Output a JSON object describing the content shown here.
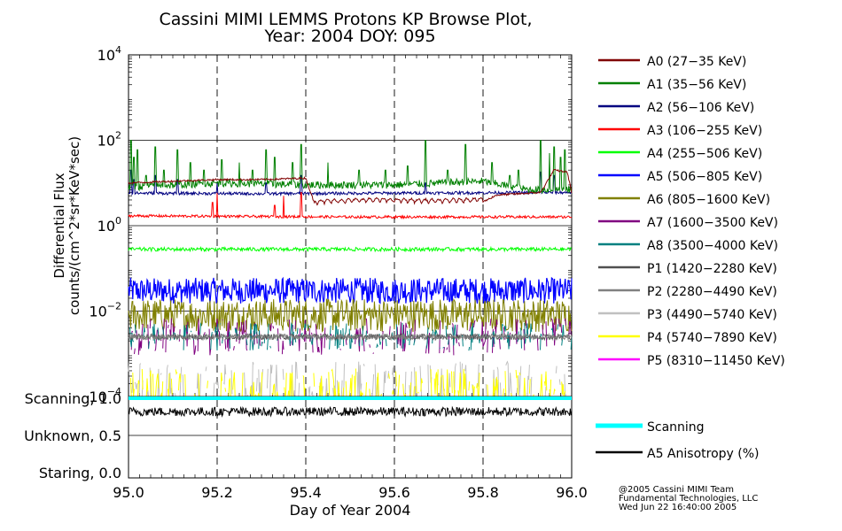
{
  "title_line1": "Cassini MIMI LEMMS Protons KP Browse Plot,",
  "title_line2": "Year: 2004 DOY: 095",
  "footer": [
    "@2005 Cassini MIMI Team",
    "Fundamental Technologies, LLC",
    "Wed Jun 22 16:40:00 2005"
  ],
  "chart_data": [
    {
      "type": "line",
      "panel": "flux",
      "xlabel": "",
      "ylabel_line1": "Differential Flux",
      "ylabel_line2": "counts/(cm^2*sr*KeV*sec)",
      "ylog": true,
      "ylim": [
        0.0001,
        10000
      ],
      "xlim": [
        95.0,
        96.0
      ],
      "ytick_labels": [
        {
          "base": "10",
          "exp": "4",
          "value": 10000
        },
        {
          "base": "10",
          "exp": "2",
          "value": 100
        },
        {
          "base": "10",
          "exp": "0",
          "value": 1
        },
        {
          "base": "10",
          "exp": "−2",
          "value": 0.01
        },
        {
          "base": "10",
          "exp": "−4",
          "value": 0.0001
        }
      ],
      "grid": true,
      "vertical_dashed_lines_at": [
        95.2,
        95.4,
        95.6,
        95.8
      ],
      "series": [
        {
          "name": "A0 (27−35 KeV)",
          "color": "#800000",
          "profile": [
            [
              95.0,
              10
            ],
            [
              95.1,
              11
            ],
            [
              95.2,
              12
            ],
            [
              95.3,
              12
            ],
            [
              95.4,
              13
            ],
            [
              95.42,
              3.2
            ],
            [
              95.55,
              3.5
            ],
            [
              95.7,
              3.3
            ],
            [
              95.8,
              3.6
            ],
            [
              95.83,
              5.2
            ],
            [
              95.93,
              6
            ],
            [
              95.96,
              20
            ],
            [
              95.99,
              18
            ],
            [
              96.0,
              6
            ]
          ],
          "noise": 0.05
        },
        {
          "name": "A1 (35−56 KeV)",
          "color": "#008000",
          "profile": [
            [
              95.0,
              8
            ],
            [
              95.2,
              10
            ],
            [
              95.4,
              9
            ],
            [
              95.6,
              9
            ],
            [
              95.8,
              11
            ],
            [
              95.9,
              7
            ],
            [
              96.0,
              7
            ]
          ],
          "noise": 0.2,
          "spikes": [
            [
              95.005,
              100
            ],
            [
              95.012,
              40
            ],
            [
              95.02,
              60
            ],
            [
              95.04,
              15
            ],
            [
              95.06,
              70
            ],
            [
              95.08,
              20
            ],
            [
              95.11,
              60
            ],
            [
              95.14,
              30
            ],
            [
              95.17,
              20
            ],
            [
              95.21,
              35
            ],
            [
              95.25,
              30
            ],
            [
              95.28,
              20
            ],
            [
              95.31,
              60
            ],
            [
              95.33,
              40
            ],
            [
              95.37,
              30
            ],
            [
              95.39,
              80
            ],
            [
              95.45,
              30
            ],
            [
              95.52,
              20
            ],
            [
              95.58,
              20
            ],
            [
              95.63,
              25
            ],
            [
              95.67,
              100
            ],
            [
              95.72,
              20
            ],
            [
              95.76,
              80
            ],
            [
              95.82,
              30
            ],
            [
              95.86,
              15
            ],
            [
              95.88,
              20
            ],
            [
              95.93,
              100
            ],
            [
              95.95,
              50
            ],
            [
              95.96,
              70
            ],
            [
              95.975,
              40
            ],
            [
              95.985,
              60
            ]
          ]
        },
        {
          "name": "A2 (56−106 KeV)",
          "color": "#000080",
          "profile": [
            [
              95.0,
              5.8
            ],
            [
              95.3,
              5.6
            ],
            [
              95.6,
              5.8
            ],
            [
              96.0,
              6
            ]
          ],
          "noise": 0.08,
          "spikes": [
            [
              95.005,
              20
            ],
            [
              95.012,
              12
            ],
            [
              95.06,
              15
            ],
            [
              95.11,
              12
            ],
            [
              95.2,
              10
            ],
            [
              95.31,
              10
            ],
            [
              95.39,
              15
            ],
            [
              95.67,
              10
            ],
            [
              95.93,
              18
            ],
            [
              95.96,
              15
            ]
          ]
        },
        {
          "name": "A3 (106−255 KeV)",
          "color": "#ff0000",
          "profile": [
            [
              95.0,
              1.7
            ],
            [
              95.5,
              1.6
            ],
            [
              96.0,
              1.6
            ]
          ],
          "noise": 0.07,
          "spikes": [
            [
              95.19,
              3.5
            ],
            [
              95.2,
              6
            ],
            [
              95.33,
              3
            ],
            [
              95.35,
              5
            ],
            [
              95.39,
              6
            ]
          ]
        },
        {
          "name": "A4 (255−506 KeV)",
          "color": "#00ff00",
          "profile": [
            [
              95.0,
              0.28
            ],
            [
              95.5,
              0.28
            ],
            [
              96.0,
              0.28
            ]
          ],
          "noise": 0.1
        },
        {
          "name": "A5 (506−805 KeV)",
          "color": "#0000ff",
          "profile": [
            [
              95.0,
              0.03
            ],
            [
              96.0,
              0.03
            ]
          ],
          "noise": 0.7
        },
        {
          "name": "A6 (805−1600 KeV)",
          "color": "#808000",
          "profile": [
            [
              95.0,
              0.008
            ],
            [
              96.0,
              0.008
            ]
          ],
          "noise": 0.9
        },
        {
          "name": "A7 (1600−3500 KeV)",
          "color": "#800080",
          "profile": [
            [
              95.0,
              0.0025
            ],
            [
              96.0,
              0.0025
            ]
          ],
          "noise": 0.4,
          "sparse": true
        },
        {
          "name": "A8 (3500−4000 KeV)",
          "color": "#008080",
          "profile": [
            [
              95.0,
              0.0025
            ],
            [
              96.0,
              0.0025
            ]
          ],
          "noise": 0.3,
          "sparse": true
        },
        {
          "name": "P1 (1420−2280 KeV)",
          "color": "#505050",
          "profile": [
            [
              95.0,
              0.0025
            ],
            [
              96.0,
              0.0025
            ]
          ],
          "noise": 0.15
        },
        {
          "name": "P2 (2280−4490 KeV)",
          "color": "#808080",
          "profile": [
            [
              95.0,
              0.0025
            ],
            [
              96.0,
              0.0025
            ]
          ],
          "noise": 0.15
        },
        {
          "name": "P3 (4490−5740 KeV)",
          "color": "#c0c0c0",
          "profile": [
            [
              95.0,
              0.00015
            ],
            [
              96.0,
              0.00015
            ]
          ],
          "noise": 0.6,
          "sparse": true
        },
        {
          "name": "P4 (5740−7890 KeV)",
          "color": "#ffff00",
          "profile": [
            [
              95.0,
              0.00013
            ],
            [
              96.0,
              0.00013
            ]
          ],
          "noise": 0.5,
          "sparse": true
        },
        {
          "name": "P5 (8310−11450 KeV)",
          "color": "#ff00ff",
          "profile": [
            [
              95.0,
              0.0001
            ],
            [
              96.0,
              0.0001
            ]
          ],
          "noise": 0.0,
          "hidden": true
        }
      ]
    },
    {
      "type": "line",
      "panel": "scanning",
      "xlabel": "Day of Year 2004",
      "xlim": [
        95.0,
        96.0
      ],
      "ylim": [
        0.0,
        1.0
      ],
      "xtick_labels": [
        "95.0",
        "95.2",
        "95.4",
        "95.6",
        "95.8",
        "96.0"
      ],
      "ytick_labels": [
        {
          "label": "Scanning, 1.0",
          "value": 1.0
        },
        {
          "label": "Unknown, 0.5",
          "value": 0.5
        },
        {
          "label": "Staring, 0.0",
          "value": 0.0
        }
      ],
      "series": [
        {
          "name": "Scanning",
          "color": "#00ffff",
          "value": 1.0
        },
        {
          "name": "A5 Anisotropy (%)",
          "color": "#000000",
          "mean": 0.82,
          "noise": 0.06
        }
      ]
    }
  ]
}
